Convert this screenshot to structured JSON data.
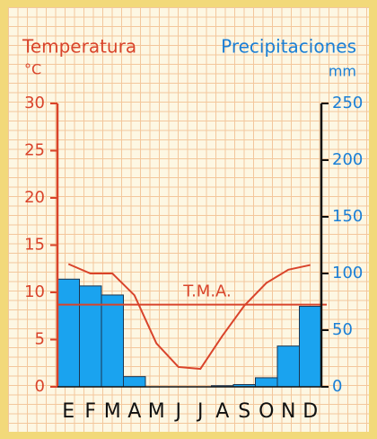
{
  "chart_data": {
    "type": "climograph",
    "categories": [
      "E",
      "F",
      "M",
      "A",
      "M",
      "J",
      "J",
      "A",
      "S",
      "O",
      "N",
      "D"
    ],
    "series": [
      {
        "name": "Precipitaciones",
        "type": "bar",
        "axis": "y2",
        "color": "#1aa3ef",
        "values": [
          95,
          89,
          81,
          9,
          0,
          0,
          0,
          1,
          2,
          8,
          36,
          71
        ]
      },
      {
        "name": "Temperatura",
        "type": "line",
        "axis": "y",
        "color": "#d9442b",
        "values": [
          13.0,
          12.0,
          12.0,
          9.7,
          4.6,
          2.1,
          1.9,
          5.4,
          8.6,
          11.0,
          12.4,
          12.9
        ]
      }
    ],
    "y_unit": "°C",
    "y2_unit": "mm",
    "ylim": [
      0,
      30
    ],
    "yticks": [
      0,
      5,
      10,
      15,
      20,
      25,
      30
    ],
    "y2lim": [
      0,
      250
    ],
    "y2ticks": [
      0,
      50,
      100,
      150,
      200,
      250
    ],
    "annotation": {
      "text": "T.M.A.",
      "value": 8.7
    }
  }
}
